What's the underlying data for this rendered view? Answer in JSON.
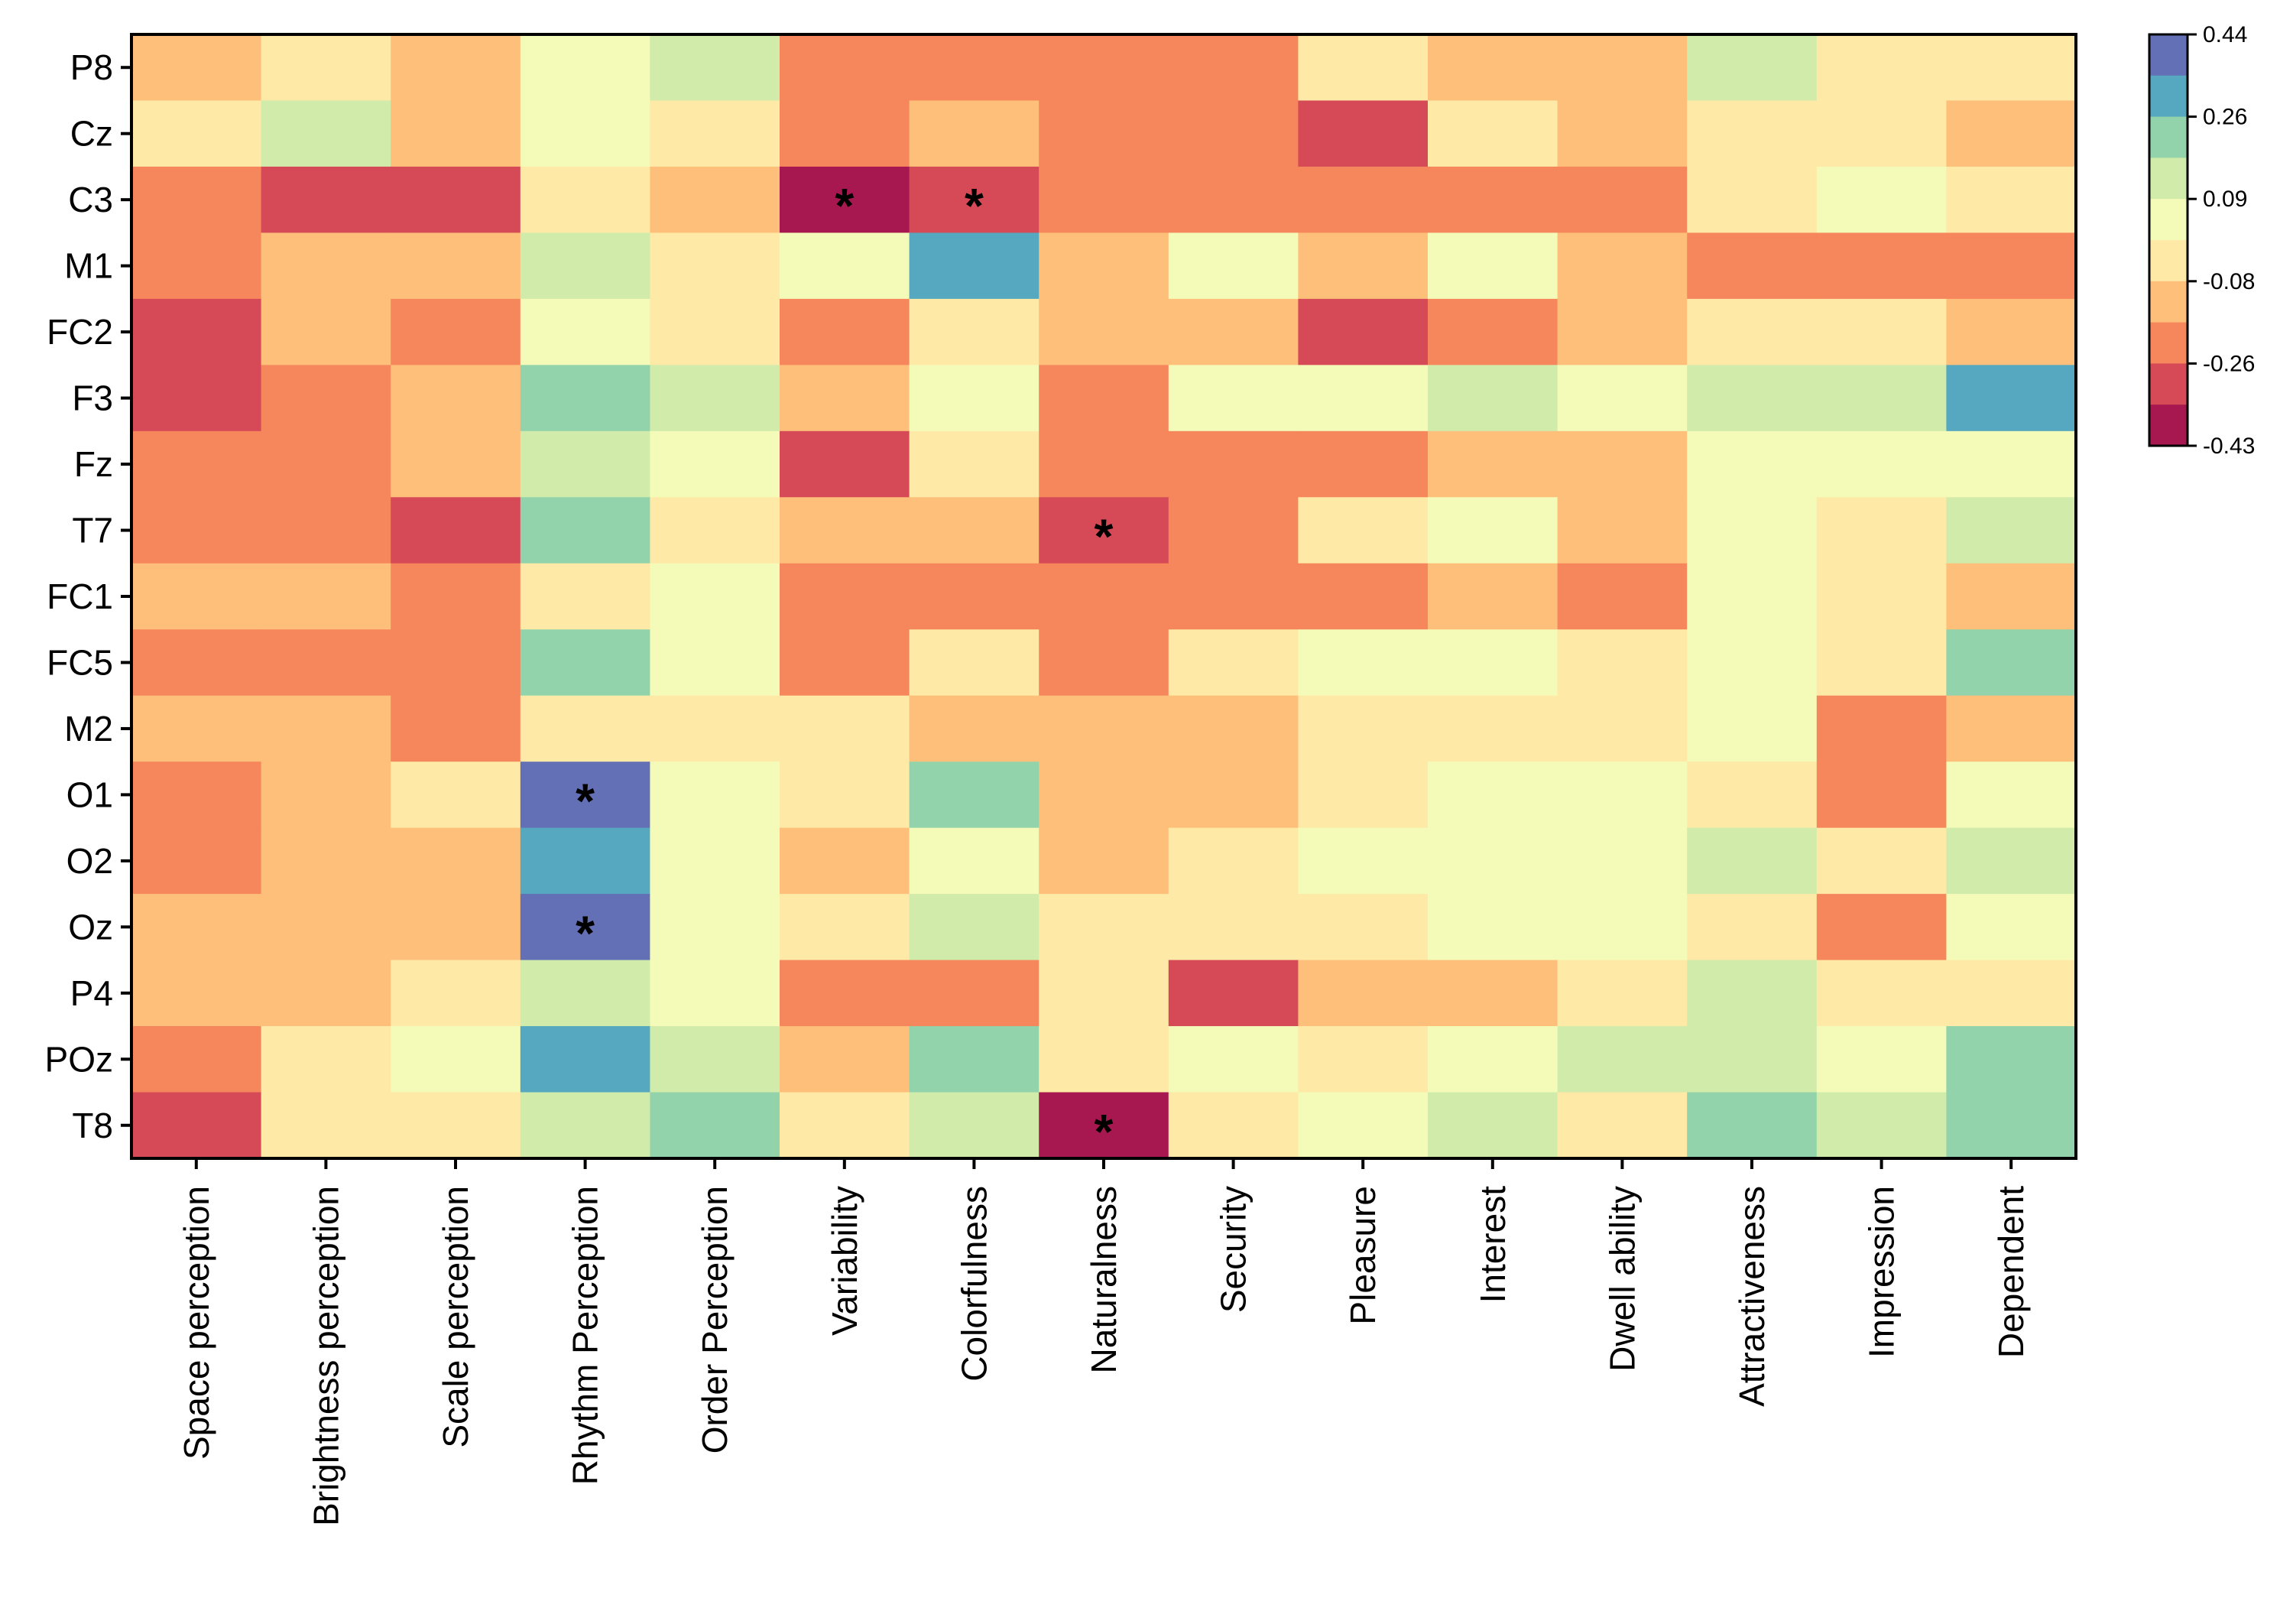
{
  "chart_data": {
    "type": "heatmap",
    "rows": [
      "P8",
      "Cz",
      "C3",
      "M1",
      "FC2",
      "F3",
      "Fz",
      "T7",
      "FC1",
      "FC5",
      "M2",
      "O1",
      "O2",
      "Oz",
      "P4",
      "POz",
      "T8"
    ],
    "columns": [
      "Space perception",
      "Brightness perception",
      "Scale perception",
      "Rhythm Perception",
      "Order Perception",
      "Variability",
      "Colorfulness",
      "Naturalness",
      "Security",
      "Pleasure",
      "Interest",
      "Dwell ability",
      "Attractiveness",
      "Impression",
      "Dependent"
    ],
    "values": [
      [
        -0.17,
        -0.04,
        -0.17,
        0.04,
        0.13,
        -0.26,
        -0.26,
        -0.26,
        -0.26,
        -0.04,
        -0.17,
        -0.17,
        0.13,
        -0.04,
        -0.04
      ],
      [
        -0.04,
        0.13,
        -0.17,
        0.04,
        -0.04,
        -0.26,
        -0.17,
        -0.26,
        -0.26,
        -0.35,
        -0.04,
        -0.17,
        -0.04,
        -0.04,
        -0.17
      ],
      [
        -0.26,
        -0.35,
        -0.35,
        -0.04,
        -0.17,
        -0.43,
        -0.35,
        -0.26,
        -0.26,
        -0.26,
        -0.26,
        -0.26,
        -0.04,
        0.04,
        -0.04
      ],
      [
        -0.26,
        -0.17,
        -0.17,
        0.13,
        -0.04,
        0.04,
        0.35,
        -0.17,
        0.04,
        -0.17,
        0.04,
        -0.17,
        -0.26,
        -0.26,
        -0.26
      ],
      [
        -0.35,
        -0.17,
        -0.26,
        0.04,
        -0.04,
        -0.26,
        -0.04,
        -0.17,
        -0.17,
        -0.35,
        -0.26,
        -0.17,
        -0.04,
        -0.04,
        -0.17
      ],
      [
        -0.35,
        -0.26,
        -0.17,
        0.22,
        0.13,
        -0.17,
        0.04,
        -0.26,
        0.04,
        0.04,
        0.13,
        0.04,
        0.13,
        0.13,
        0.35
      ],
      [
        -0.26,
        -0.26,
        -0.17,
        0.13,
        0.04,
        -0.35,
        -0.04,
        -0.26,
        -0.26,
        -0.26,
        -0.17,
        -0.17,
        0.04,
        0.04,
        0.04
      ],
      [
        -0.26,
        -0.26,
        -0.35,
        0.22,
        -0.04,
        -0.17,
        -0.17,
        -0.35,
        -0.26,
        -0.04,
        0.04,
        -0.17,
        0.04,
        -0.04,
        0.13
      ],
      [
        -0.17,
        -0.17,
        -0.26,
        -0.04,
        0.04,
        -0.26,
        -0.26,
        -0.26,
        -0.26,
        -0.26,
        -0.17,
        -0.26,
        0.04,
        -0.04,
        -0.17
      ],
      [
        -0.26,
        -0.26,
        -0.26,
        0.22,
        0.04,
        -0.26,
        -0.04,
        -0.26,
        -0.04,
        0.04,
        0.04,
        -0.04,
        0.04,
        -0.04,
        0.22
      ],
      [
        -0.17,
        -0.17,
        -0.26,
        -0.04,
        -0.04,
        -0.04,
        -0.17,
        -0.17,
        -0.17,
        -0.04,
        -0.04,
        -0.04,
        0.04,
        -0.26,
        -0.17
      ],
      [
        -0.26,
        -0.17,
        -0.04,
        0.44,
        0.04,
        -0.04,
        0.22,
        -0.17,
        -0.17,
        -0.04,
        0.04,
        0.04,
        -0.04,
        -0.26,
        0.04
      ],
      [
        -0.26,
        -0.17,
        -0.17,
        0.35,
        0.04,
        -0.17,
        0.04,
        -0.17,
        -0.04,
        0.04,
        0.04,
        0.04,
        0.13,
        -0.04,
        0.13
      ],
      [
        -0.17,
        -0.17,
        -0.17,
        0.44,
        0.04,
        -0.04,
        0.13,
        -0.04,
        -0.04,
        -0.04,
        0.04,
        0.04,
        -0.04,
        -0.26,
        0.04
      ],
      [
        -0.17,
        -0.17,
        -0.04,
        0.13,
        0.04,
        -0.26,
        -0.26,
        -0.04,
        -0.35,
        -0.17,
        -0.17,
        -0.04,
        0.13,
        -0.04,
        -0.04
      ],
      [
        -0.26,
        -0.04,
        0.04,
        0.35,
        0.13,
        -0.17,
        0.22,
        -0.04,
        0.04,
        -0.04,
        0.04,
        0.13,
        0.13,
        0.04,
        0.22
      ],
      [
        -0.35,
        -0.04,
        -0.04,
        0.13,
        0.22,
        -0.04,
        0.13,
        -0.43,
        -0.04,
        0.04,
        0.13,
        -0.04,
        0.22,
        0.13,
        0.22
      ]
    ],
    "significant": [
      [
        2,
        5
      ],
      [
        2,
        6
      ],
      [
        7,
        7
      ],
      [
        11,
        3
      ],
      [
        13,
        3
      ],
      [
        16,
        7
      ]
    ],
    "significance_marker": "*",
    "colorbar": {
      "ticks": [
        "0.44",
        "0.26",
        "0.09",
        "-0.08",
        "-0.26",
        "-0.43"
      ],
      "colors": [
        "#6470b5",
        "#55a8c0",
        "#92d3ab",
        "#d1ebaa",
        "#f4fbb8",
        "#fee9a6",
        "#fdbf79",
        "#f6865b",
        "#d64a58",
        "#a6184f"
      ]
    },
    "bin_edges": [
      -0.43,
      -0.39,
      -0.3,
      -0.21,
      -0.12,
      -0.03,
      0.08,
      0.17,
      0.26,
      0.39,
      0.44
    ]
  }
}
